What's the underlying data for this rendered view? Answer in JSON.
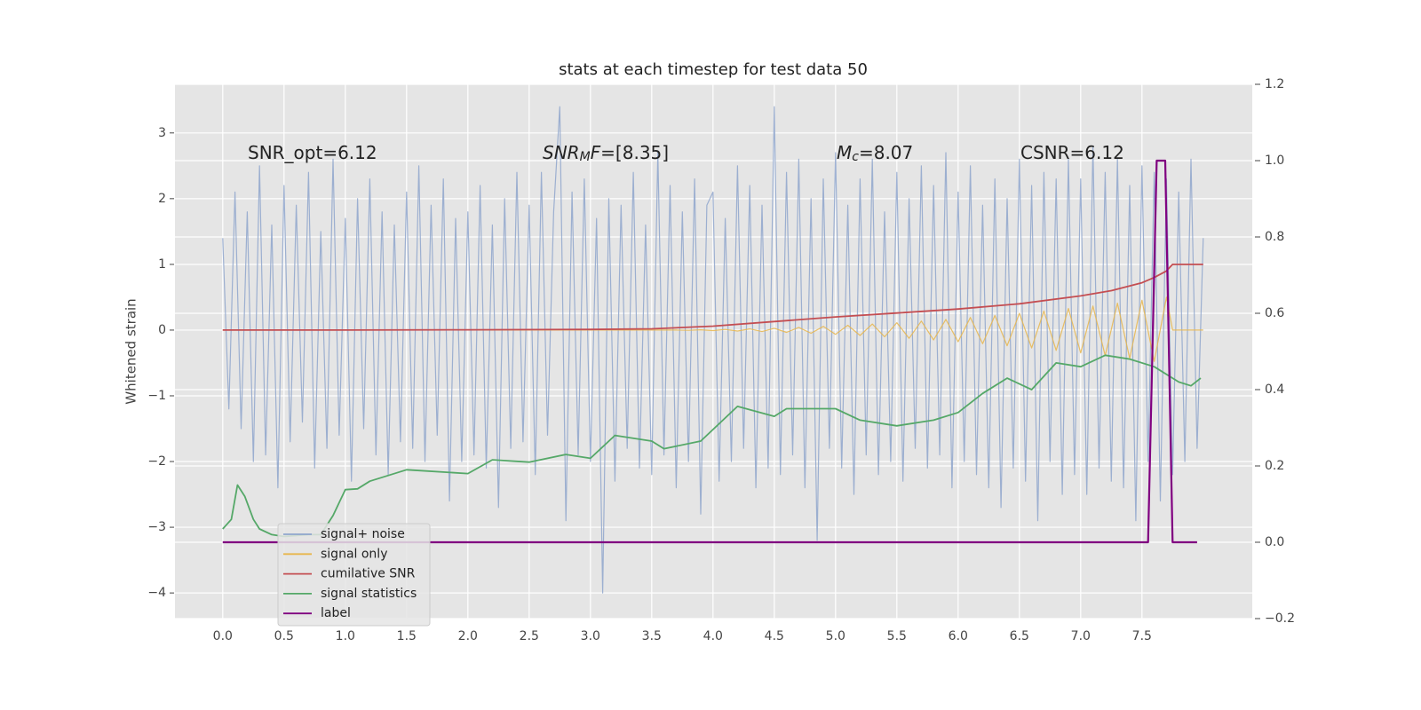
{
  "chart_data": {
    "type": "line",
    "title": "stats at each timestep for test data 50",
    "ylabel": "Whitened strain",
    "annotations": [
      {
        "text": "SNR_opt=6.12"
      },
      {
        "math": [
          "SNR",
          "M",
          "F"
        ],
        "text": "=[8.35]"
      },
      {
        "math": [
          "M",
          "c"
        ],
        "text": "=8.07"
      },
      {
        "text": "CSNR=6.12"
      }
    ],
    "xlim": [
      -0.39,
      8.4
    ],
    "ylim": [
      -4.39,
      3.74
    ],
    "y2lim": [
      -0.2,
      1.2
    ],
    "xticks": [
      {
        "value": 0,
        "label": "0.0"
      },
      0.5,
      {
        "value": 1,
        "label": "1.0"
      },
      1.5,
      {
        "value": 2,
        "label": "2.0"
      },
      2.5,
      {
        "value": 3,
        "label": "3.0"
      },
      3.5,
      {
        "value": 4,
        "label": "4.0"
      },
      4.5,
      {
        "value": 5,
        "label": "5.0"
      },
      5.5,
      {
        "value": 6,
        "label": "6.0"
      },
      6.5,
      {
        "value": 7,
        "label": "7.0"
      },
      7.5
    ],
    "yticks": [
      {
        "value": -4,
        "label": "−4"
      },
      {
        "value": -3,
        "label": "−3"
      },
      {
        "value": -2,
        "label": "−2"
      },
      {
        "value": -1,
        "label": "−1"
      },
      0,
      1,
      2,
      3
    ],
    "y2ticks": [
      {
        "value": -0.2,
        "label": "−0.2"
      },
      {
        "value": 0,
        "label": "0.0"
      },
      0.2,
      0.4,
      0.6,
      0.8,
      {
        "value": 1,
        "label": "1.0"
      },
      1.2
    ],
    "grid": true,
    "legend": "lower left",
    "x": [
      0,
      0.05,
      0.1,
      0.15,
      0.2,
      0.25,
      0.3,
      0.35,
      0.4,
      0.45,
      0.5,
      0.55,
      0.6,
      0.65,
      0.7,
      0.75,
      0.8,
      0.85,
      0.9,
      0.95,
      1,
      1.05,
      1.1,
      1.15,
      1.2,
      1.25,
      1.3,
      1.35,
      1.4,
      1.45,
      1.5,
      1.55,
      1.6,
      1.65,
      1.7,
      1.75,
      1.8,
      1.85,
      1.9,
      1.95,
      2,
      2.05,
      2.1,
      2.15,
      2.2,
      2.25,
      2.3,
      2.35,
      2.4,
      2.45,
      2.5,
      2.55,
      2.6,
      2.65,
      2.7,
      2.75,
      2.8,
      2.85,
      2.9,
      2.95,
      3,
      3.05,
      3.1,
      3.15,
      3.2,
      3.25,
      3.3,
      3.35,
      3.4,
      3.45,
      3.5,
      3.55,
      3.6,
      3.65,
      3.7,
      3.75,
      3.8,
      3.85,
      3.9,
      3.95,
      4,
      4.05,
      4.1,
      4.15,
      4.2,
      4.25,
      4.3,
      4.35,
      4.4,
      4.45,
      4.5,
      4.55,
      4.6,
      4.65,
      4.7,
      4.75,
      4.8,
      4.85,
      4.9,
      4.95,
      5,
      5.05,
      5.1,
      5.15,
      5.2,
      5.25,
      5.3,
      5.35,
      5.4,
      5.45,
      5.5,
      5.55,
      5.6,
      5.65,
      5.7,
      5.75,
      5.8,
      5.85,
      5.9,
      5.95,
      6,
      6.05,
      6.1,
      6.15,
      6.2,
      6.25,
      6.3,
      6.35,
      6.4,
      6.45,
      6.5,
      6.55,
      6.6,
      6.65,
      6.7,
      6.75,
      6.8,
      6.85,
      6.9,
      6.95,
      7,
      7.05,
      7.1,
      7.15,
      7.2,
      7.25,
      7.3,
      7.35,
      7.4,
      7.45,
      7.5,
      7.55,
      7.6,
      7.65,
      7.7,
      7.75,
      7.8,
      7.85,
      7.9,
      7.95,
      8
    ],
    "series": [
      {
        "name": "signal+ noise",
        "color": "#8fa6cc",
        "values": [
          1.4,
          -1.2,
          2.1,
          -1.5,
          1.8,
          -2.0,
          2.5,
          -1.9,
          1.6,
          -2.4,
          2.2,
          -1.7,
          1.9,
          -1.4,
          2.4,
          -2.1,
          1.5,
          -1.8,
          2.6,
          -1.6,
          1.7,
          -2.3,
          2.0,
          -1.5,
          2.3,
          -1.9,
          1.8,
          -2.2,
          1.6,
          -1.7,
          2.1,
          -1.8,
          2.5,
          -2.0,
          1.9,
          -1.6,
          2.3,
          -2.6,
          1.7,
          -2.0,
          1.8,
          -1.9,
          2.2,
          -2.1,
          1.6,
          -2.7,
          2.0,
          -1.8,
          2.4,
          -1.7,
          1.9,
          -2.2,
          2.4,
          -1.6,
          1.8,
          3.4,
          -2.9,
          2.1,
          -1.9,
          2.3,
          -2.0,
          1.7,
          -4.0,
          2.0,
          -2.3,
          1.9,
          -1.8,
          2.4,
          -2.1,
          1.6,
          -2.2,
          2.7,
          -1.9,
          2.2,
          -2.4,
          1.8,
          -2.0,
          2.3,
          -2.8,
          1.9,
          2.1,
          -2.3,
          1.7,
          -2.0,
          2.5,
          -1.8,
          2.2,
          -2.4,
          1.9,
          -2.1,
          3.4,
          -2.2,
          2.4,
          -1.9,
          2.6,
          -2.4,
          2.0,
          -3.2,
          2.3,
          -1.8,
          2.7,
          -2.1,
          1.9,
          -2.5,
          2.3,
          -1.9,
          2.6,
          -2.2,
          1.8,
          -2.0,
          2.4,
          -2.3,
          2.0,
          -1.8,
          2.5,
          -2.1,
          2.2,
          -1.9,
          2.7,
          -2.4,
          2.1,
          -2.0,
          2.5,
          -2.2,
          1.9,
          -2.4,
          2.3,
          -2.7,
          2.0,
          -2.1,
          2.6,
          -2.3,
          2.2,
          -2.9,
          2.4,
          -2.0,
          2.3,
          -2.5,
          2.6,
          -2.2,
          2.3,
          -2.5,
          2.8,
          -2.1,
          2.4,
          -2.3,
          2.6,
          -2.4,
          2.2,
          -2.9,
          2.5,
          -2.0,
          2.4,
          -2.6,
          2.3,
          -2.2,
          2.1,
          -2.0,
          2.6,
          -1.8,
          1.4
        ]
      },
      {
        "name": "signal only",
        "color": "#e8b64c",
        "x": [
          0,
          3.5,
          3.6,
          3.7,
          3.8,
          3.9,
          4,
          4.1,
          4.2,
          4.3,
          4.4,
          4.5,
          4.6,
          4.7,
          4.8,
          4.9,
          5,
          5.1,
          5.2,
          5.3,
          5.4,
          5.5,
          5.6,
          5.7,
          5.8,
          5.9,
          6,
          6.1,
          6.2,
          6.3,
          6.4,
          6.5,
          6.6,
          6.7,
          6.8,
          6.9,
          7,
          7.1,
          7.2,
          7.3,
          7.4,
          7.5,
          7.6,
          7.7,
          7.75,
          8
        ],
        "values": [
          0,
          0,
          0,
          0.001,
          -0.003,
          0.005,
          -0.007,
          0.01,
          -0.014,
          0.018,
          -0.023,
          0.028,
          -0.034,
          0.041,
          -0.048,
          0.056,
          -0.064,
          0.073,
          -0.082,
          0.092,
          -0.102,
          0.113,
          -0.125,
          0.137,
          -0.15,
          0.163,
          -0.177,
          0.192,
          -0.207,
          0.222,
          -0.238,
          0.255,
          -0.272,
          0.29,
          -0.309,
          0.328,
          -0.347,
          0.367,
          -0.388,
          0.409,
          -0.431,
          0.454,
          -0.477,
          0.5,
          0,
          0
        ]
      },
      {
        "name": "cumilative SNR",
        "color": "#c44e52",
        "x": [
          0,
          1,
          2,
          3,
          3.5,
          4,
          4.5,
          5,
          5.5,
          6,
          6.5,
          7,
          7.25,
          7.5,
          7.6,
          7.7,
          7.75,
          8
        ],
        "values": [
          0,
          0,
          0.005,
          0.01,
          0.02,
          0.06,
          0.13,
          0.2,
          0.26,
          0.32,
          0.4,
          0.52,
          0.6,
          0.72,
          0.8,
          0.9,
          1.0,
          1.0
        ]
      },
      {
        "name": "signal statistics",
        "color": "#55a868",
        "axis": "y2",
        "x": [
          0,
          0.07,
          0.12,
          0.18,
          0.25,
          0.3,
          0.4,
          0.5,
          0.7,
          0.8,
          0.9,
          1,
          1.1,
          1.2,
          1.5,
          2,
          2.2,
          2.5,
          2.8,
          3,
          3.2,
          3.5,
          3.6,
          3.9,
          4.2,
          4.5,
          4.6,
          5,
          5.2,
          5.5,
          5.8,
          6,
          6.2,
          6.4,
          6.6,
          6.8,
          7,
          7.2,
          7.4,
          7.6,
          7.8,
          7.9,
          7.98
        ],
        "values": [
          0.035,
          0.06,
          0.15,
          0.12,
          0.06,
          0.035,
          0.02,
          0.015,
          0.02,
          0.02,
          0.07,
          0.138,
          0.14,
          0.16,
          0.19,
          0.18,
          0.216,
          0.21,
          0.23,
          0.22,
          0.28,
          0.265,
          0.245,
          0.265,
          0.356,
          0.33,
          0.35,
          0.35,
          0.32,
          0.305,
          0.32,
          0.34,
          0.39,
          0.43,
          0.4,
          0.47,
          0.46,
          0.49,
          0.48,
          0.46,
          0.42,
          0.41,
          0.43
        ]
      },
      {
        "name": "label",
        "color": "#800080",
        "axis": "y2",
        "x": [
          0,
          7.55,
          7.62,
          7.69,
          7.75,
          7.95
        ],
        "values": [
          0,
          0,
          1,
          1,
          0,
          0
        ]
      }
    ]
  }
}
